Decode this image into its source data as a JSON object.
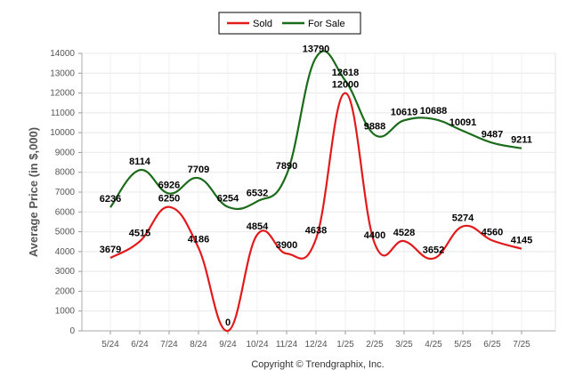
{
  "chart_data": {
    "type": "line",
    "categories": [
      "5/24",
      "6/24",
      "7/24",
      "8/24",
      "9/24",
      "10/24",
      "11/24",
      "12/24",
      "1/25",
      "2/25",
      "3/25",
      "4/25",
      "5/25",
      "6/25",
      "7/25"
    ],
    "series": [
      {
        "name": "Sold",
        "color": "#e31a1c",
        "values": [
          3679,
          4515,
          6250,
          4186,
          0,
          4854,
          3900,
          4638,
          12000,
          4400,
          4528,
          3652,
          5274,
          4560,
          4145
        ]
      },
      {
        "name": "For Sale",
        "color": "#1a6b1a",
        "values": [
          6236,
          8114,
          6926,
          7709,
          6254,
          6532,
          7890,
          13790,
          12618,
          9888,
          10619,
          10688,
          10091,
          9487,
          9211
        ]
      }
    ],
    "ylabel": "Average Price (in $,000)",
    "xlabel": "",
    "ylim": [
      0,
      14000
    ],
    "yticks": [
      "0",
      "1000",
      "2000",
      "3000",
      "4000",
      "5000",
      "6000",
      "7000",
      "8000",
      "9000",
      "10000",
      "11000",
      "12000",
      "13000",
      "14000"
    ],
    "grid": true,
    "legend_position": "top-center",
    "data_labels": true
  },
  "footer": {
    "copyright": "Copyright © Trendgraphix, Inc."
  }
}
